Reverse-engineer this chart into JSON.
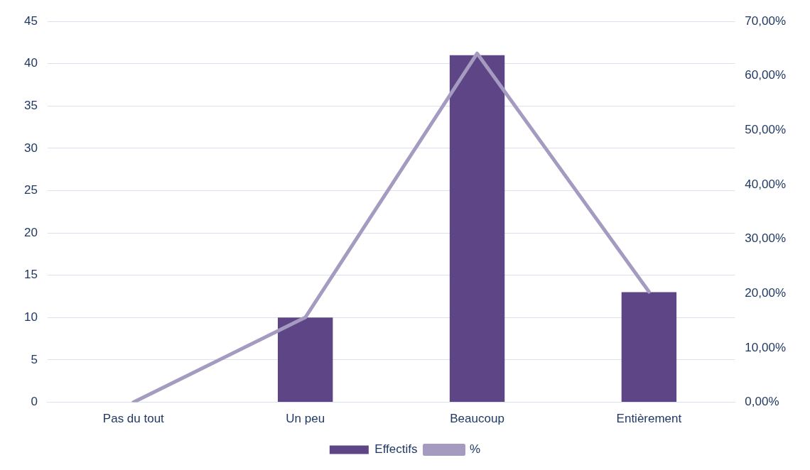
{
  "chart_data": {
    "type": "bar",
    "categories": [
      "Pas du tout",
      "Un peu",
      "Beaucoup",
      "Entièrement"
    ],
    "series": [
      {
        "name": "Effectifs",
        "color": "#5e4585",
        "values": [
          0,
          10,
          41,
          13
        ]
      },
      {
        "name": "%",
        "type": "line",
        "axis": "y2",
        "color": "#a59bc0",
        "values": [
          0,
          15.6,
          64.1,
          20.3
        ]
      }
    ],
    "ylim": [
      0,
      45
    ],
    "yticks": [
      0,
      5,
      10,
      15,
      20,
      25,
      30,
      35,
      40,
      45
    ],
    "y2lim": [
      0,
      70
    ],
    "y2ticks": [
      {
        "value": 0,
        "label": "0,00%"
      },
      {
        "value": 10,
        "label": "10,00%"
      },
      {
        "value": 20,
        "label": "20,00%"
      },
      {
        "value": 30,
        "label": "30,00%"
      },
      {
        "value": 40,
        "label": "40,00%"
      },
      {
        "value": 50,
        "label": "50,00%"
      },
      {
        "value": 60,
        "label": "60,00%"
      },
      {
        "value": 70,
        "label": "70,00%"
      }
    ],
    "grid": "y",
    "legend": "bottom",
    "marker": "none",
    "line_style": "solid"
  }
}
